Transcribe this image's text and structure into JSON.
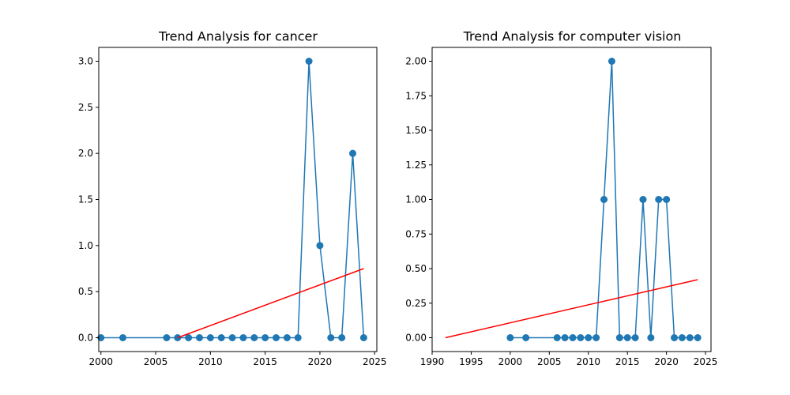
{
  "chart_data": [
    {
      "type": "line",
      "title": "Trend Analysis for cancer",
      "xlabel": "",
      "ylabel": "",
      "xlim": [
        1999.8,
        2025.2
      ],
      "ylim": [
        -0.15,
        3.15
      ],
      "xticks": [
        2000,
        2005,
        2010,
        2015,
        2020,
        2025
      ],
      "xtick_labels": [
        "2000",
        "2005",
        "2010",
        "2015",
        "2020",
        "2025"
      ],
      "yticks": [
        0.0,
        0.5,
        1.0,
        1.5,
        2.0,
        2.5,
        3.0
      ],
      "ytick_labels": [
        "0.0",
        "0.5",
        "1.0",
        "1.5",
        "2.0",
        "2.5",
        "3.0"
      ],
      "grid": false,
      "series": [
        {
          "color": "#1f77b4",
          "marker": "circle",
          "x": [
            2000,
            2002,
            2006,
            2007,
            2008,
            2009,
            2010,
            2011,
            2012,
            2013,
            2014,
            2015,
            2016,
            2017,
            2018,
            2019,
            2020,
            2021,
            2022,
            2023,
            2024
          ],
          "y": [
            0,
            0,
            0,
            0,
            0,
            0,
            0,
            0,
            0,
            0,
            0,
            0,
            0,
            0,
            0,
            3,
            1,
            0,
            0,
            2,
            0
          ]
        }
      ],
      "trend_line": {
        "color": "#ff0000",
        "x": [
          2007,
          2024
        ],
        "y": [
          0.0,
          0.75
        ]
      }
    },
    {
      "type": "line",
      "title": "Trend Analysis for computer vision",
      "xlabel": "",
      "ylabel": "",
      "xlim": [
        1990.0,
        2025.7
      ],
      "ylim": [
        -0.1,
        2.1
      ],
      "xticks": [
        1990,
        1995,
        2000,
        2005,
        2010,
        2015,
        2020,
        2025
      ],
      "xtick_labels": [
        "1990",
        "1995",
        "2000",
        "2005",
        "2010",
        "2015",
        "2020",
        "2025"
      ],
      "yticks": [
        0.0,
        0.25,
        0.5,
        0.75,
        1.0,
        1.25,
        1.5,
        1.75,
        2.0
      ],
      "ytick_labels": [
        "0.00",
        "0.25",
        "0.50",
        "0.75",
        "1.00",
        "1.25",
        "1.50",
        "1.75",
        "2.00"
      ],
      "grid": false,
      "series": [
        {
          "color": "#1f77b4",
          "marker": "circle",
          "x": [
            2000,
            2002,
            2006,
            2007,
            2008,
            2009,
            2010,
            2011,
            2012,
            2013,
            2014,
            2015,
            2016,
            2017,
            2018,
            2019,
            2020,
            2021,
            2022,
            2023,
            2024
          ],
          "y": [
            0,
            0,
            0,
            0,
            0,
            0,
            0,
            0,
            1,
            2,
            0,
            0,
            0,
            1,
            0,
            1,
            1,
            0,
            0,
            0,
            0
          ]
        }
      ],
      "trend_line": {
        "color": "#ff0000",
        "x": [
          1991.7,
          2024
        ],
        "y": [
          0.0,
          0.42
        ]
      }
    }
  ]
}
